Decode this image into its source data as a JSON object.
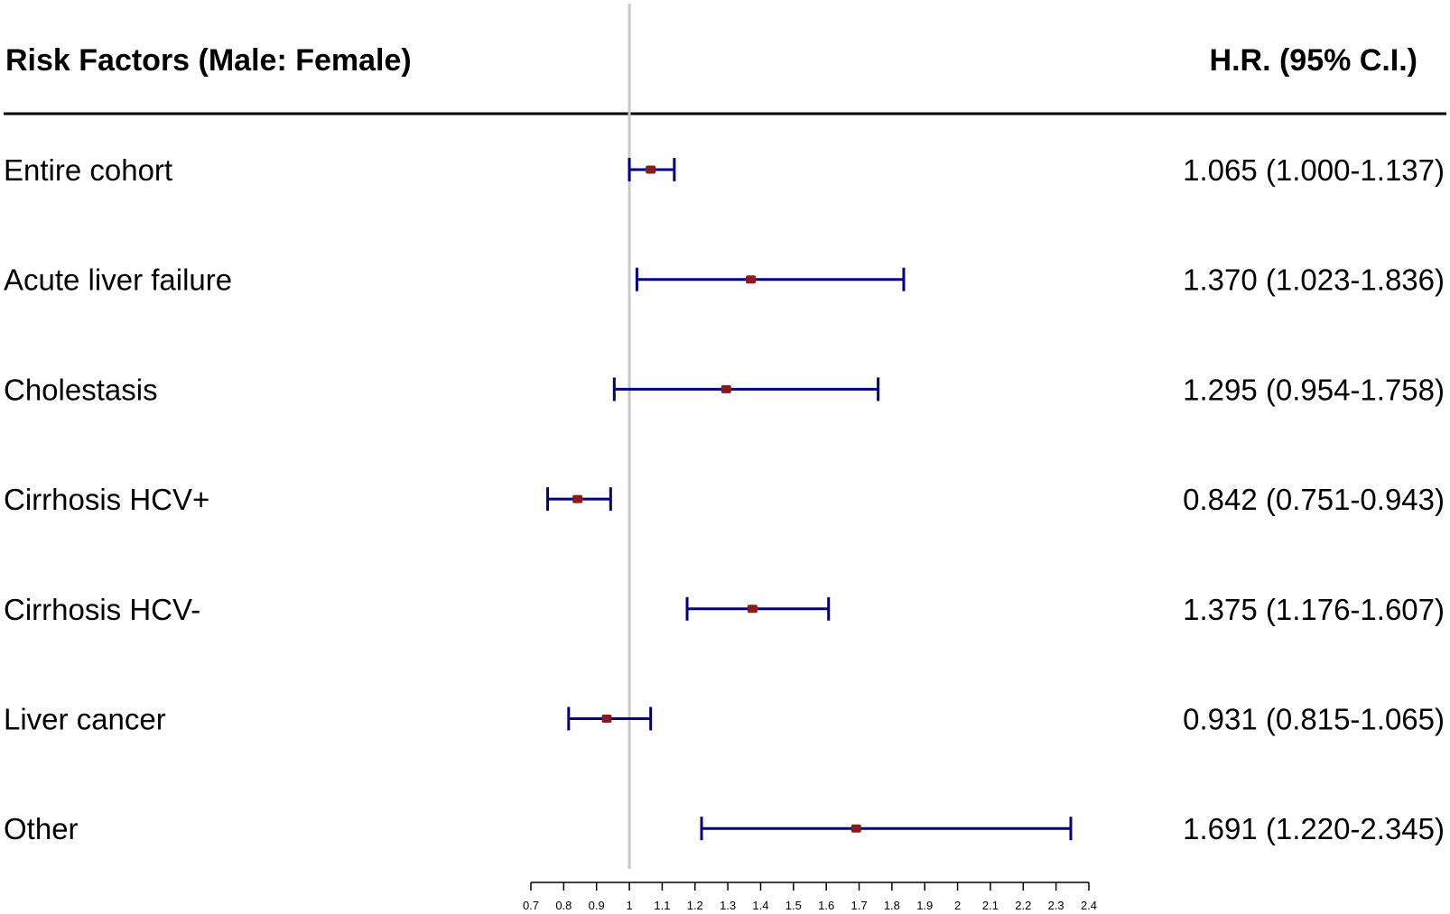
{
  "header": {
    "left_title": "Risk Factors (Male: Female)",
    "right_title": "H.R. (95% C.I.)"
  },
  "colors": {
    "ci_line": "#000080",
    "point": "#8b1a1a",
    "reference_line": "#c8c8c8",
    "text": "#000000"
  },
  "chart_data": {
    "type": "forest",
    "reference_value": 1,
    "xlim": [
      0.7,
      2.4
    ],
    "ticks": [
      {
        "value": 0.7,
        "label": "0.7"
      },
      {
        "value": 0.8,
        "label": "0.8"
      },
      {
        "value": 0.9,
        "label": "0.9"
      },
      {
        "value": 1.0,
        "label": "1"
      },
      {
        "value": 1.1,
        "label": "1.1"
      },
      {
        "value": 1.2,
        "label": "1.2"
      },
      {
        "value": 1.3,
        "label": "1.3"
      },
      {
        "value": 1.4,
        "label": "1.4"
      },
      {
        "value": 1.5,
        "label": "1.5"
      },
      {
        "value": 1.6,
        "label": "1.6"
      },
      {
        "value": 1.7,
        "label": "1.7"
      },
      {
        "value": 1.8,
        "label": "1.8"
      },
      {
        "value": 1.9,
        "label": "1.9"
      },
      {
        "value": 2.0,
        "label": "2"
      },
      {
        "value": 2.1,
        "label": "2.1"
      },
      {
        "value": 2.2,
        "label": "2.2"
      },
      {
        "value": 2.3,
        "label": "2.3"
      },
      {
        "value": 2.4,
        "label": "2.4"
      }
    ],
    "rows": [
      {
        "label": "Entire cohort",
        "hr": 1.065,
        "lower": 1.0,
        "upper": 1.137,
        "hr_text": "1.065 (1.000-1.137)"
      },
      {
        "label": "Acute liver failure",
        "hr": 1.37,
        "lower": 1.023,
        "upper": 1.836,
        "hr_text": "1.370 (1.023-1.836)"
      },
      {
        "label": "Cholestasis",
        "hr": 1.295,
        "lower": 0.954,
        "upper": 1.758,
        "hr_text": "1.295 (0.954-1.758)"
      },
      {
        "label": "Cirrhosis HCV+",
        "hr": 0.842,
        "lower": 0.751,
        "upper": 0.943,
        "hr_text": "0.842 (0.751-0.943)"
      },
      {
        "label": "Cirrhosis HCV-",
        "hr": 1.375,
        "lower": 1.176,
        "upper": 1.607,
        "hr_text": "1.375 (1.176-1.607)"
      },
      {
        "label": "Liver cancer",
        "hr": 0.931,
        "lower": 0.815,
        "upper": 1.065,
        "hr_text": "0.931 (0.815-1.065)"
      },
      {
        "label": "Other",
        "hr": 1.691,
        "lower": 1.22,
        "upper": 2.345,
        "hr_text": "1.691 (1.220-2.345)"
      }
    ]
  }
}
